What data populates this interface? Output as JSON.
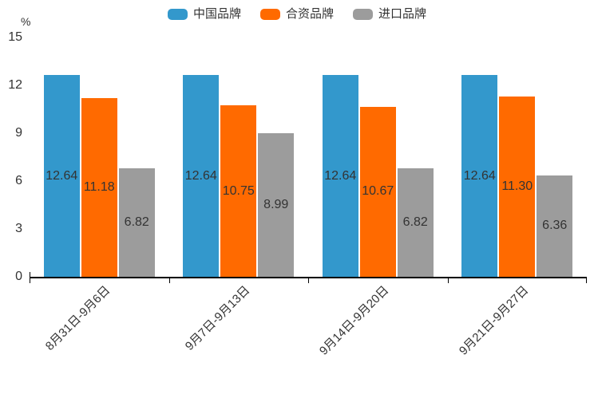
{
  "chart_data": {
    "type": "bar",
    "unit_label": "%",
    "categories": [
      "8月31日-9月6日",
      "9月7日-9月13日",
      "9月14日-9月20日",
      "9月21日-9月27日"
    ],
    "series": [
      {
        "name": "中国品牌",
        "slug": "china-brand",
        "color": "#3398CC",
        "values": [
          12.64,
          12.64,
          12.64,
          12.64
        ]
      },
      {
        "name": "合资品牌",
        "slug": "joint-venture-brand",
        "color": "#FF6A00",
        "values": [
          11.18,
          10.75,
          10.67,
          11.3
        ]
      },
      {
        "name": "进口品牌",
        "slug": "import-brand",
        "color": "#9C9C9C",
        "values": [
          6.82,
          8.99,
          6.82,
          6.36
        ]
      }
    ],
    "ylim": [
      0,
      15
    ],
    "y_ticks": [
      0,
      3,
      6,
      9,
      12,
      15
    ],
    "legend_position": "top",
    "grid": false,
    "value_label_decimals": 2,
    "colors": {
      "axis_line": "#000000",
      "axis_label": "#333333",
      "value_label": "#333333",
      "background": "#ffffff"
    }
  }
}
